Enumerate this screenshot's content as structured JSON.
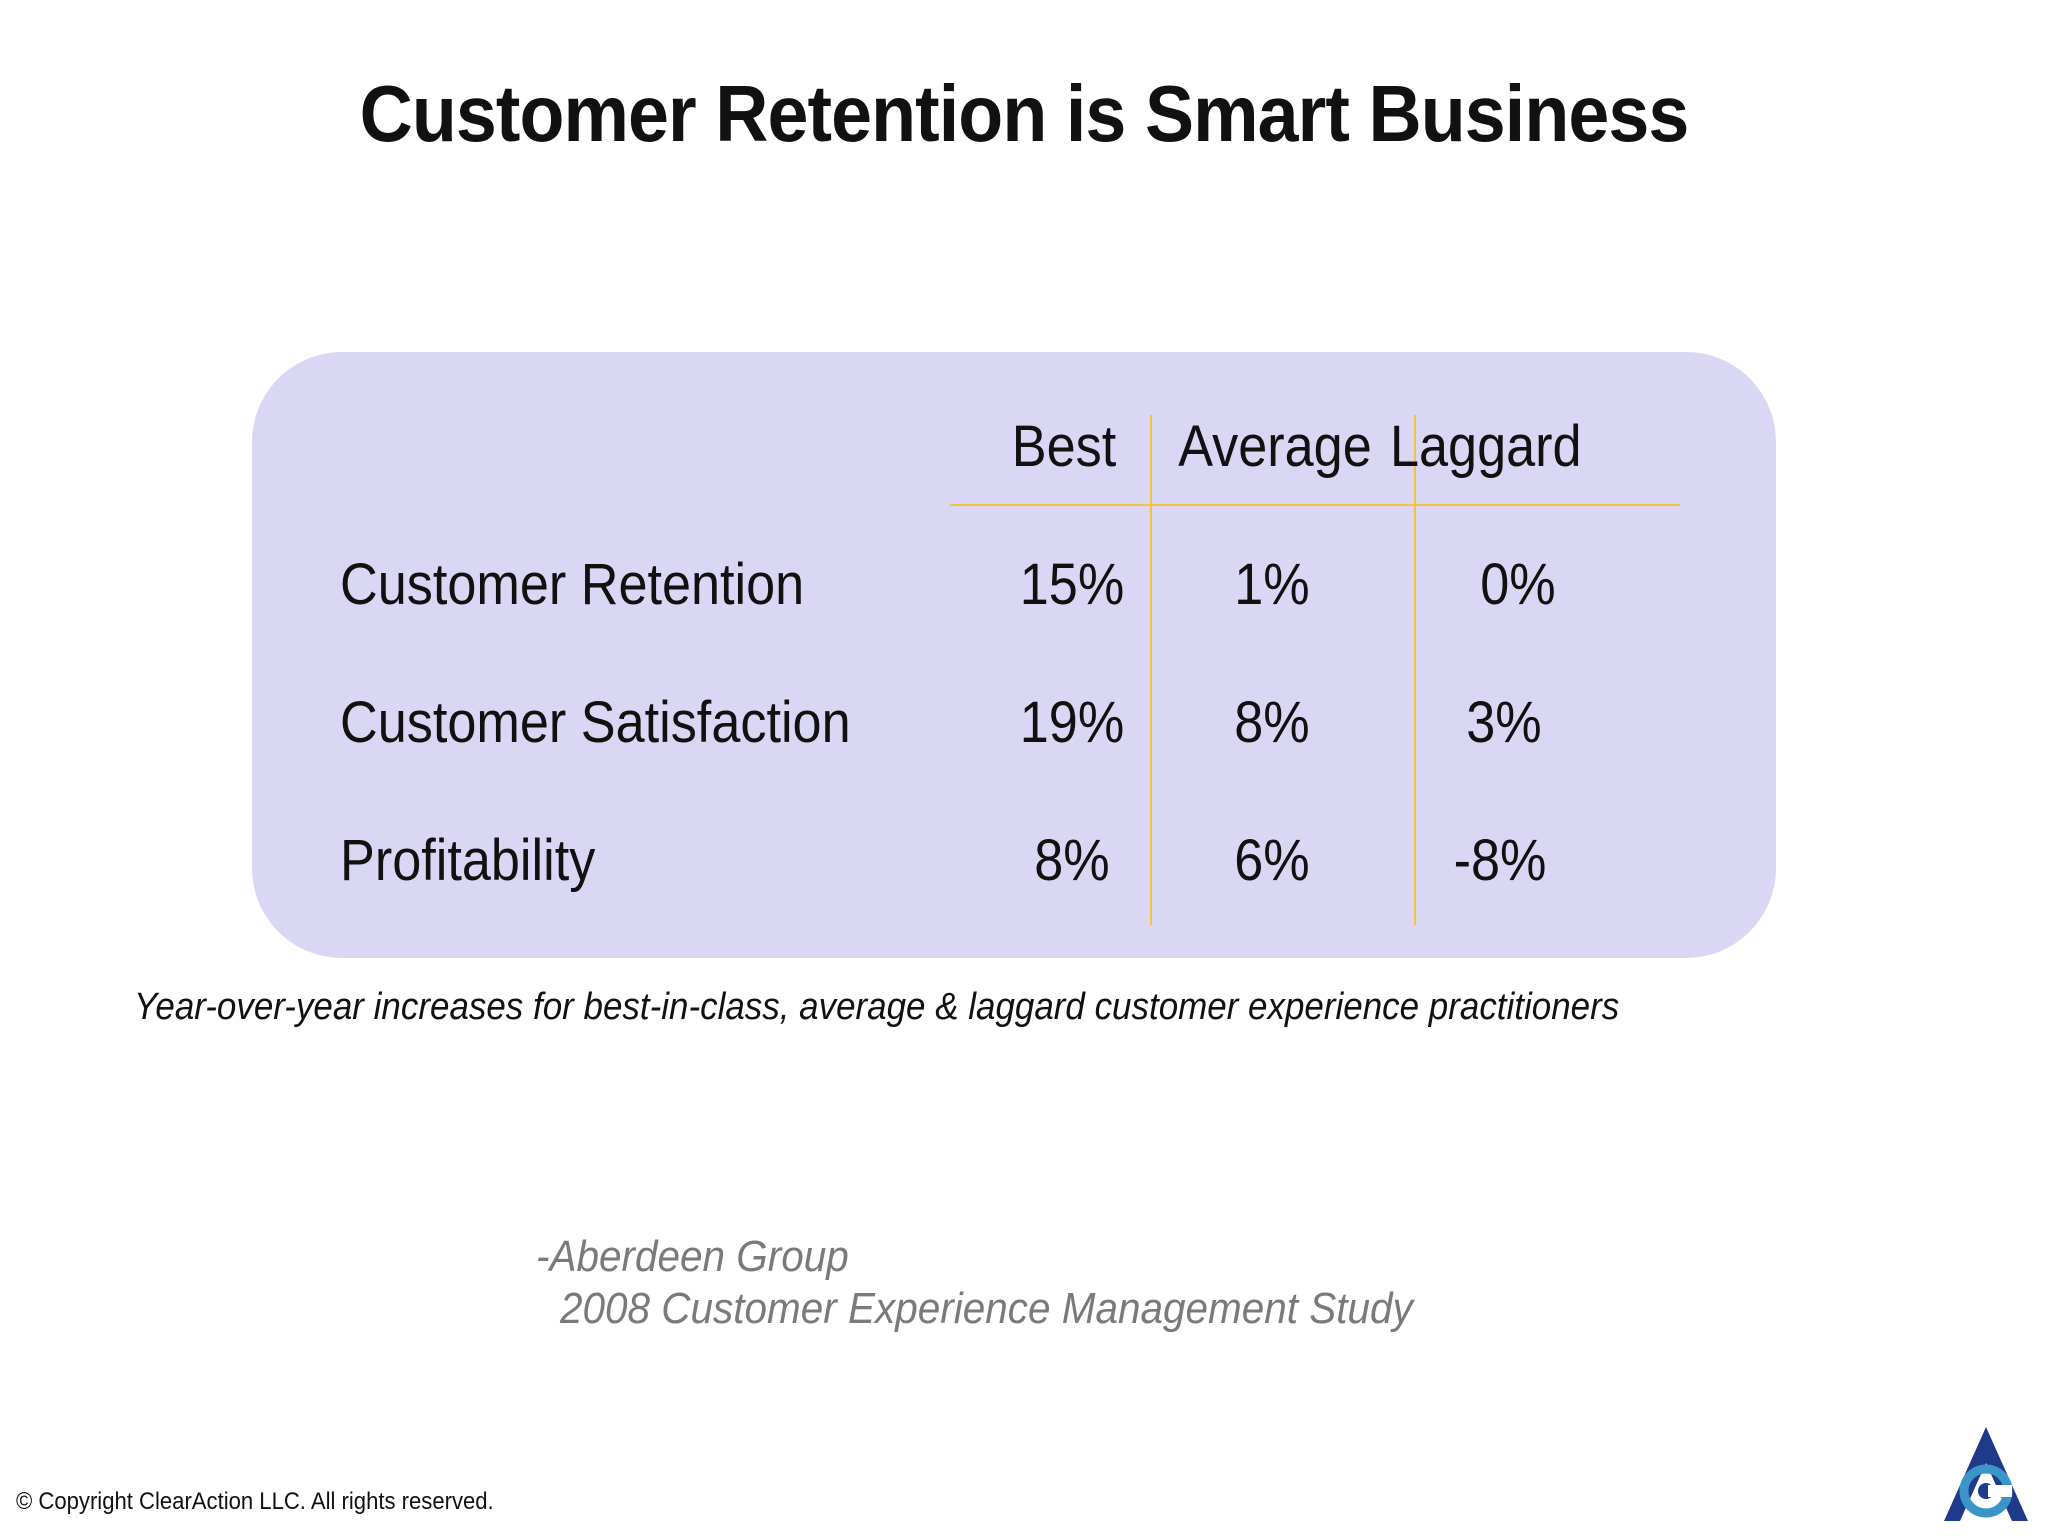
{
  "slide": {
    "title": "Customer Retention is Smart Business"
  },
  "table": {
    "columns": [
      "Best",
      "Average",
      "Laggard"
    ],
    "rows": [
      {
        "label": "Customer Retention",
        "values": [
          "15%",
          "1%",
          "0%"
        ]
      },
      {
        "label": "Customer Satisfaction",
        "values": [
          "19%",
          "8%",
          "3%"
        ]
      },
      {
        "label": "Profitability",
        "values": [
          "8%",
          "6%",
          "-8%"
        ]
      }
    ]
  },
  "caption": "Year-over-year increases for best-in-class, average & laggard customer experience practitioners",
  "source": {
    "line1": "-Aberdeen Group",
    "line2": "2008 Customer Experience Management Study"
  },
  "footer": {
    "copyright": "© Copyright ClearAction LLC. All rights reserved."
  },
  "colors": {
    "panel": "#d9d7f4",
    "divider": "#f2c33c",
    "source_text": "#7a7a7a",
    "logo_navy": "#1f3a8a",
    "logo_teal": "#3a96c8"
  },
  "logo": {
    "icon": "clearaction-logo-icon"
  }
}
